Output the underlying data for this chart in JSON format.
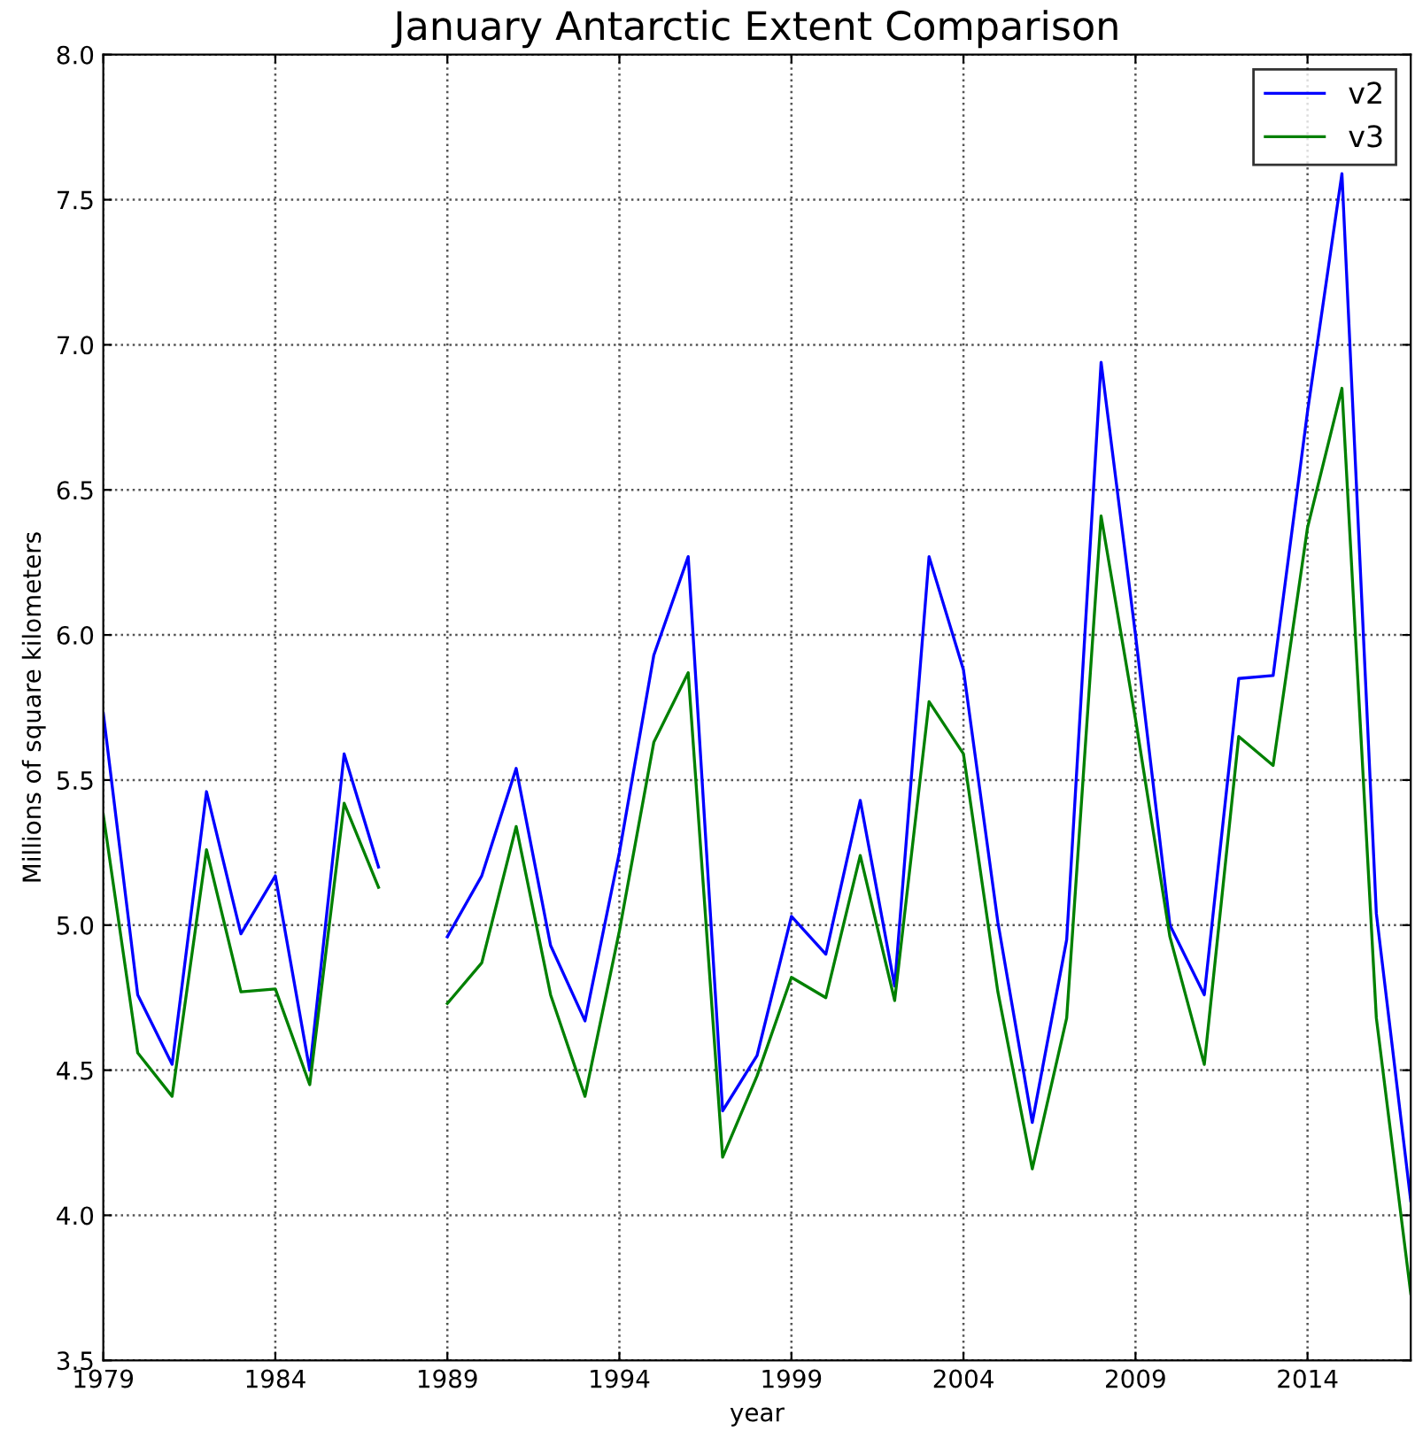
{
  "chart_data": {
    "type": "line",
    "title": "January Antarctic Extent Comparison",
    "xlabel": "year",
    "ylabel": "Millions of square kilometers",
    "x": [
      1979,
      1980,
      1981,
      1982,
      1983,
      1984,
      1985,
      1986,
      1987,
      1988,
      1989,
      1990,
      1991,
      1992,
      1993,
      1994,
      1995,
      1996,
      1997,
      1998,
      1999,
      2000,
      2001,
      2002,
      2003,
      2004,
      2005,
      2006,
      2007,
      2008,
      2009,
      2010,
      2011,
      2012,
      2013,
      2014,
      2015,
      2016,
      2017
    ],
    "series": [
      {
        "name": "v2",
        "color": "#0000ff",
        "values": [
          5.73,
          4.76,
          4.52,
          5.46,
          4.97,
          5.17,
          4.5,
          5.59,
          5.2,
          null,
          4.96,
          5.17,
          5.54,
          4.93,
          4.67,
          5.25,
          5.93,
          6.27,
          4.36,
          4.55,
          5.03,
          4.9,
          5.43,
          4.79,
          6.27,
          5.88,
          5.01,
          4.32,
          4.95,
          6.94,
          6.0,
          5.0,
          4.76,
          5.85,
          5.86,
          6.77,
          7.59,
          5.04,
          4.05
        ]
      },
      {
        "name": "v3",
        "color": "#008000",
        "values": [
          5.38,
          4.56,
          4.41,
          5.26,
          4.77,
          4.78,
          4.45,
          5.42,
          5.13,
          null,
          4.73,
          4.87,
          5.34,
          4.76,
          4.41,
          4.98,
          5.63,
          5.87,
          4.2,
          4.48,
          4.82,
          4.75,
          5.24,
          4.74,
          5.77,
          5.59,
          4.77,
          4.16,
          4.68,
          6.41,
          5.71,
          4.96,
          4.52,
          5.65,
          5.55,
          6.37,
          6.85,
          4.68,
          3.73
        ]
      }
    ],
    "xlim": [
      1979,
      2017
    ],
    "xticks": [
      1979,
      1984,
      1989,
      1994,
      1999,
      2004,
      2009,
      2014
    ],
    "ylim": [
      3.5,
      8.0
    ],
    "yticks": [
      {
        "value": 3.5,
        "label": "3.5"
      },
      {
        "value": 4.0,
        "label": "4.0"
      },
      {
        "value": 4.5,
        "label": "4.5"
      },
      {
        "value": 5.0,
        "label": "5.0"
      },
      {
        "value": 5.5,
        "label": "5.5"
      },
      {
        "value": 6.0,
        "label": "6.0"
      },
      {
        "value": 6.5,
        "label": "6.5"
      },
      {
        "value": 7.0,
        "label": "7.0"
      },
      {
        "value": 7.5,
        "label": "7.5"
      },
      {
        "value": 8.0,
        "label": "8.0"
      }
    ],
    "grid": true,
    "legend": "top right",
    "line_style": "solid"
  }
}
